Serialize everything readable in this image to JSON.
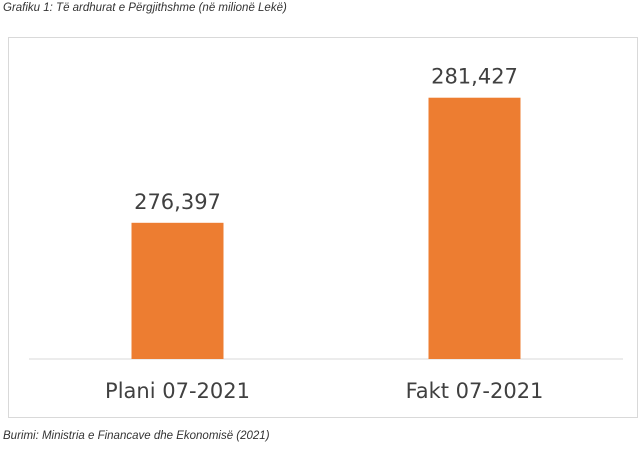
{
  "caption": "Grafiku 1: Të ardhurat e Përgjithshme (në milionë Lekë)",
  "source": "Burimi: Ministria e Financave dhe Ekonomisë (2021)",
  "chart_data": {
    "type": "bar",
    "categories": [
      "Plani 07-2021",
      "Fakt 07-2021"
    ],
    "values": [
      276397,
      281427
    ],
    "data_labels": [
      "276,397",
      "281,427"
    ],
    "title": "",
    "xlabel": "",
    "ylabel": "",
    "ylim": [
      270920,
      282300
    ],
    "grid": false,
    "legend": "none",
    "bar_color": "#ED7D31",
    "axis_color": "#d9d9d9",
    "label_color": "#404040"
  }
}
